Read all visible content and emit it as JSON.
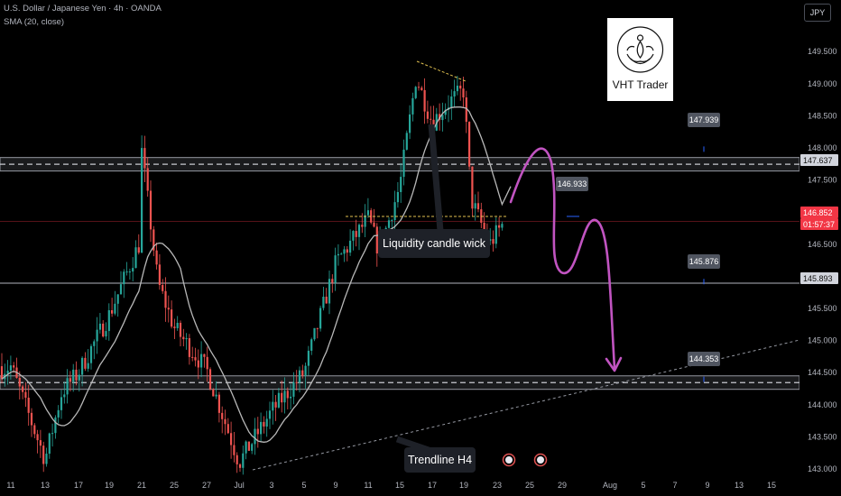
{
  "header": {
    "symbol_line": "U.S. Dollar / Japanese Yen · 4h · OANDA",
    "indicator_line": "SMA (20, close)"
  },
  "currency_button": "JPY",
  "logo": {
    "brand": "VHT Trader"
  },
  "annotations": {
    "liquidity_label": "Liquidity candle wick",
    "trendline_label": "Trendline H4"
  },
  "tags": {
    "t1": "147.939",
    "t2": "146.933",
    "t3": "145.876",
    "t4": "144.353"
  },
  "price_labels": {
    "resistance": "147.637",
    "current_price": "146.852",
    "countdown": "01:57:37",
    "support": "145.893"
  },
  "colors": {
    "up": "#26a69a",
    "down": "#ef5350",
    "sma": "#b8b8b8",
    "projection": "#c154c1",
    "current": "#f23645",
    "zone": "#9598a1"
  },
  "chart_data": {
    "type": "candlestick",
    "symbol": "USD/JPY",
    "timeframe": "4h",
    "y_axis": {
      "ticks": [
        143.0,
        143.5,
        144.0,
        144.5,
        145.0,
        145.5,
        146.0,
        146.5,
        147.0,
        147.5,
        148.0,
        148.5,
        149.0,
        149.5
      ],
      "tick_labels": [
        "143.000",
        "143.500",
        "144.000",
        "144.500",
        "145.000",
        "145.500",
        "146.000",
        "146.500",
        "147.000",
        "147.500",
        "148.000",
        "148.500",
        "149.000",
        "149.500"
      ],
      "range": [
        142.95,
        149.75
      ]
    },
    "x_axis": {
      "labels": [
        "11",
        "13",
        "17",
        "19",
        "21",
        "25",
        "27",
        "Jul",
        "3",
        "5",
        "9",
        "11",
        "15",
        "17",
        "19",
        "23",
        "25",
        "29",
        "Aug",
        "5",
        "7",
        "9",
        "13",
        "15"
      ]
    },
    "price_path": [
      [
        "11",
        144.6
      ],
      [
        "13",
        143.15
      ],
      [
        "15",
        144.2
      ],
      [
        "17",
        144.5
      ],
      [
        "19",
        145.4
      ],
      [
        "21",
        146.6
      ],
      [
        "21",
        147.95
      ],
      [
        "24",
        145.9
      ],
      [
        "25",
        145.2
      ],
      [
        "27",
        144.55
      ],
      [
        "Jul",
        143.1
      ],
      [
        "3",
        143.9
      ],
      [
        "5",
        144.5
      ],
      [
        "9",
        146.2
      ],
      [
        "11",
        146.9
      ],
      [
        "13",
        146.4
      ],
      [
        "15",
        147.4
      ],
      [
        "16",
        149.1
      ],
      [
        "17",
        148.4
      ],
      [
        "18",
        148.7
      ],
      [
        "19",
        148.9
      ],
      [
        "21",
        147.2
      ],
      [
        "22",
        146.5
      ],
      [
        "23",
        146.85
      ]
    ],
    "zones": [
      {
        "low": 147.64,
        "high": 147.85
      },
      {
        "low": 144.24,
        "high": 144.45
      }
    ],
    "levels": [
      145.893
    ],
    "current_price": 146.852
  }
}
